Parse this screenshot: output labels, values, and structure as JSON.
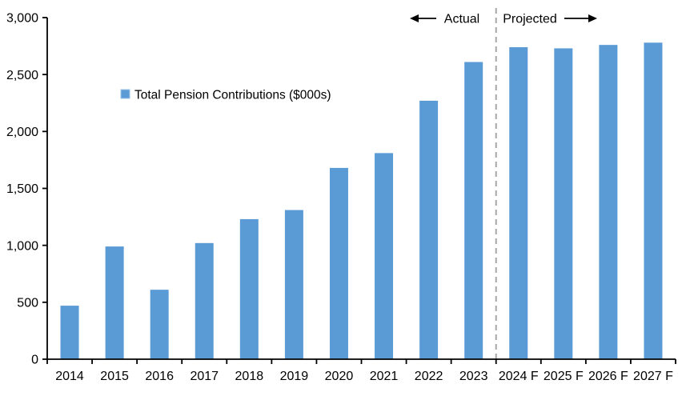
{
  "chart_data": {
    "type": "bar",
    "title": "",
    "legend": "Total Pension Contributions ($000s)",
    "legend_position": "inside-upper-left",
    "categories": [
      "2014",
      "2015",
      "2016",
      "2017",
      "2018",
      "2019",
      "2020",
      "2021",
      "2022",
      "2023",
      "2024 F",
      "2025 F",
      "2026 F",
      "2027 F"
    ],
    "values": [
      470,
      990,
      610,
      1020,
      1230,
      1310,
      1680,
      1810,
      2270,
      2610,
      2740,
      2730,
      2760,
      2780
    ],
    "xlabel": "",
    "ylabel": "",
    "ylim": [
      0,
      3000
    ],
    "ytick_step": 500,
    "ytick_labels": [
      "0",
      "500",
      "1,000",
      "1,500",
      "2,000",
      "2,500",
      "3,000"
    ],
    "grid": false,
    "colors": {
      "bar": "#5B9BD5",
      "bar_edge": "#9DC3E6",
      "axis": "#000000",
      "text": "#000000",
      "divider": "#A6A6A6",
      "background": "#FFFFFF"
    },
    "divider": {
      "after_category": "2023",
      "style": "dashed"
    },
    "annotations": {
      "left_label": "Actual",
      "left_arrow_direction": "left",
      "right_label": "Projected",
      "right_arrow_direction": "right"
    }
  }
}
